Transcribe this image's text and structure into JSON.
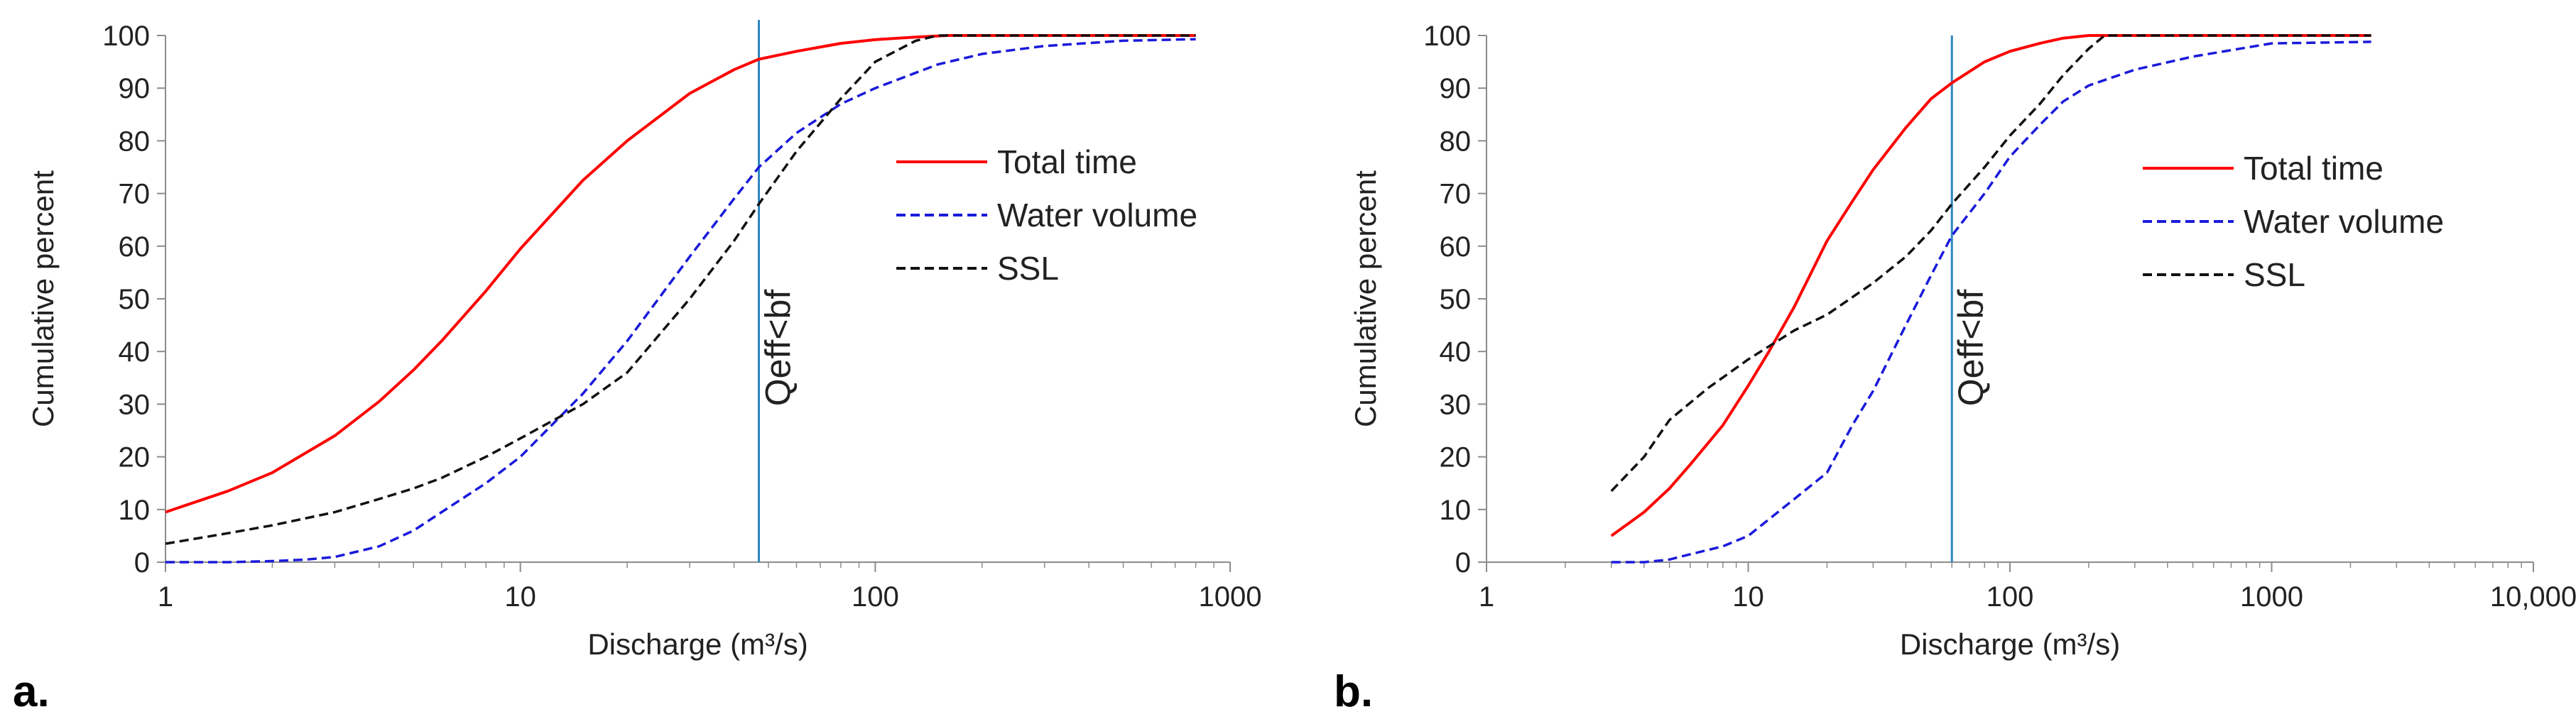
{
  "chart_data": [
    {
      "type": "line",
      "panel_label": "a.",
      "xscale": "log",
      "xlim": [
        1,
        1000
      ],
      "ylim": [
        0,
        100
      ],
      "xticks": [
        1,
        10,
        100,
        1000
      ],
      "xtick_labels": [
        "1",
        "10",
        "100",
        "1000"
      ],
      "yticks": [
        0,
        10,
        20,
        30,
        40,
        50,
        60,
        70,
        80,
        90,
        100
      ],
      "xlabel": "Discharge (m³/s)",
      "ylabel": "Cumulative percent",
      "grid": false,
      "legend_position": "right",
      "vline": {
        "x": 47,
        "label": "Qeff<bf",
        "color": "#2e86c1"
      },
      "series": [
        {
          "name": "Total time",
          "color": "#ff0000",
          "dash": "solid",
          "x": [
            1,
            1.5,
            2,
            3,
            4,
            5,
            6,
            8,
            10,
            15,
            20,
            30,
            40,
            47,
            60,
            80,
            100,
            130,
            160,
            200,
            300,
            500,
            800
          ],
          "y": [
            9.5,
            13.5,
            17,
            24,
            30.5,
            36.5,
            42,
            51.5,
            59.5,
            72.5,
            80,
            89,
            93.5,
            95.5,
            97,
            98.5,
            99.2,
            99.7,
            100,
            100,
            100,
            100,
            100
          ]
        },
        {
          "name": "Water volume",
          "color": "#1a1adb",
          "dash": "dash",
          "x": [
            1,
            1.5,
            2,
            2.5,
            3,
            4,
            5,
            6,
            8,
            10,
            15,
            20,
            30,
            40,
            47,
            60,
            80,
            100,
            150,
            200,
            300,
            500,
            800
          ],
          "y": [
            0,
            0,
            0.2,
            0.5,
            1,
            3,
            6,
            9.5,
            15,
            20,
            32,
            42,
            58,
            69,
            75,
            81.5,
            87,
            90,
            94.5,
            96.5,
            98,
            99,
            99.3
          ]
        },
        {
          "name": "SSL",
          "color": "#111111",
          "dash": "dash",
          "x": [
            1,
            1.5,
            2,
            3,
            4,
            5,
            6,
            8,
            10,
            15,
            20,
            30,
            40,
            47,
            60,
            80,
            100,
            130,
            150,
            200,
            300,
            500,
            800
          ],
          "y": [
            3.5,
            5.5,
            7,
            9.5,
            12,
            14,
            16,
            20,
            23.5,
            30,
            36,
            50,
            61,
            68,
            78,
            88,
            95,
            99,
            100,
            100,
            100,
            100,
            100
          ]
        }
      ]
    },
    {
      "type": "line",
      "panel_label": "b.",
      "xscale": "log",
      "xlim": [
        1,
        10000
      ],
      "ylim": [
        0,
        100
      ],
      "xticks": [
        1,
        10,
        100,
        1000,
        10000
      ],
      "xtick_labels": [
        "1",
        "10",
        "100",
        "1000",
        "10,000"
      ],
      "yticks": [
        0,
        10,
        20,
        30,
        40,
        50,
        60,
        70,
        80,
        90,
        100
      ],
      "xlabel": "Discharge (m³/s)",
      "ylabel": "Cumulative percent",
      "grid": false,
      "legend_position": "right",
      "vline": {
        "x": 60,
        "label": "Qeff<bf",
        "color": "#2e86c1"
      },
      "series": [
        {
          "name": "Total time",
          "color": "#ff0000",
          "dash": "solid",
          "x": [
            3,
            4,
            5,
            6,
            8,
            10,
            12,
            15,
            20,
            25,
            30,
            40,
            50,
            60,
            80,
            100,
            130,
            160,
            200,
            300,
            500,
            1000,
            2400
          ],
          "y": [
            5,
            9.5,
            14,
            18.5,
            26,
            33.5,
            40,
            48.5,
            61,
            68.5,
            74.5,
            82.5,
            88,
            91,
            95,
            97,
            98.5,
            99.5,
            100,
            100,
            100,
            100,
            100
          ]
        },
        {
          "name": "Water volume",
          "color": "#1a1adb",
          "dash": "dash",
          "x": [
            3,
            4,
            5,
            6,
            8,
            10,
            15,
            20,
            25,
            30,
            40,
            50,
            60,
            80,
            100,
            130,
            160,
            200,
            300,
            500,
            1000,
            2400
          ],
          "y": [
            0,
            0,
            0.5,
            1.5,
            3,
            5,
            12,
            17,
            26,
            32.5,
            45,
            54.5,
            62,
            70,
            77,
            83,
            87.5,
            90.5,
            93.5,
            96,
            98.5,
            98.8
          ]
        },
        {
          "name": "SSL",
          "color": "#111111",
          "dash": "dash",
          "x": [
            3,
            4,
            5,
            7,
            10,
            15,
            20,
            30,
            40,
            50,
            60,
            80,
            100,
            130,
            160,
            200,
            230,
            300,
            500,
            1000,
            2400
          ],
          "y": [
            13.5,
            20,
            27,
            33,
            38.5,
            44,
            47,
            53,
            58,
            63,
            68,
            75,
            81,
            87,
            92.5,
            97.5,
            100,
            100,
            100,
            100,
            100
          ]
        }
      ]
    }
  ]
}
